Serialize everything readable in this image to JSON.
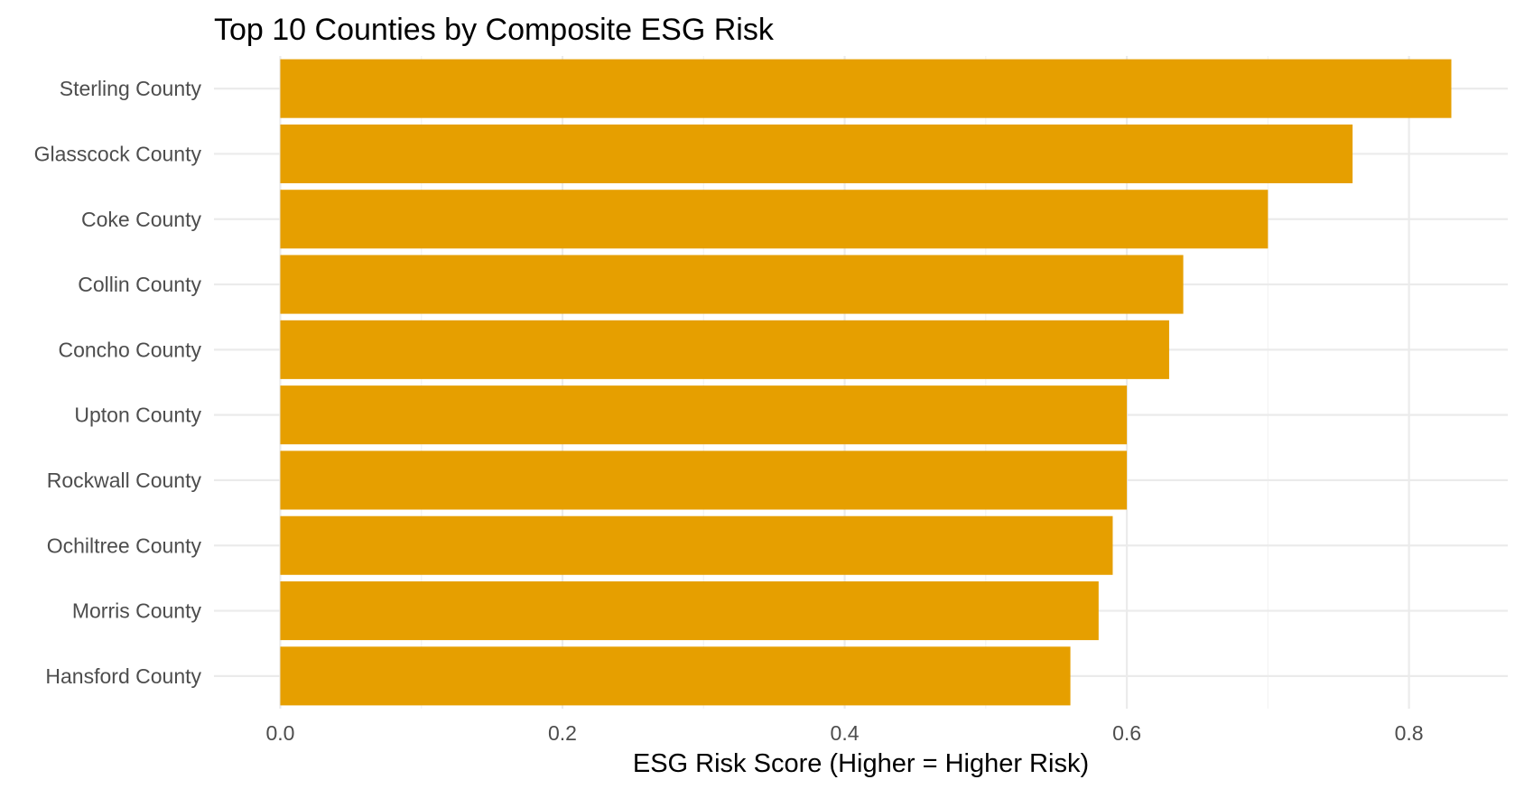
{
  "chart_data": {
    "type": "bar",
    "orientation": "horizontal",
    "title": "Top 10 Counties by Composite ESG Risk",
    "xlabel": "ESG Risk Score (Higher = Higher Risk)",
    "ylabel": "",
    "categories": [
      "Sterling County",
      "Glasscock County",
      "Coke County",
      "Collin County",
      "Concho County",
      "Upton County",
      "Rockwall County",
      "Ochiltree County",
      "Morris County",
      "Hansford County"
    ],
    "values": [
      0.83,
      0.76,
      0.7,
      0.64,
      0.63,
      0.6,
      0.6,
      0.59,
      0.58,
      0.56
    ],
    "xlim": [
      -0.047,
      0.87
    ],
    "x_ticks": [
      0.0,
      0.2,
      0.4,
      0.6,
      0.8
    ],
    "x_tick_labels": [
      "0.0",
      "0.2",
      "0.4",
      "0.6",
      "0.8"
    ],
    "bar_color": "#E69F00",
    "grid": true,
    "legend": "none"
  }
}
